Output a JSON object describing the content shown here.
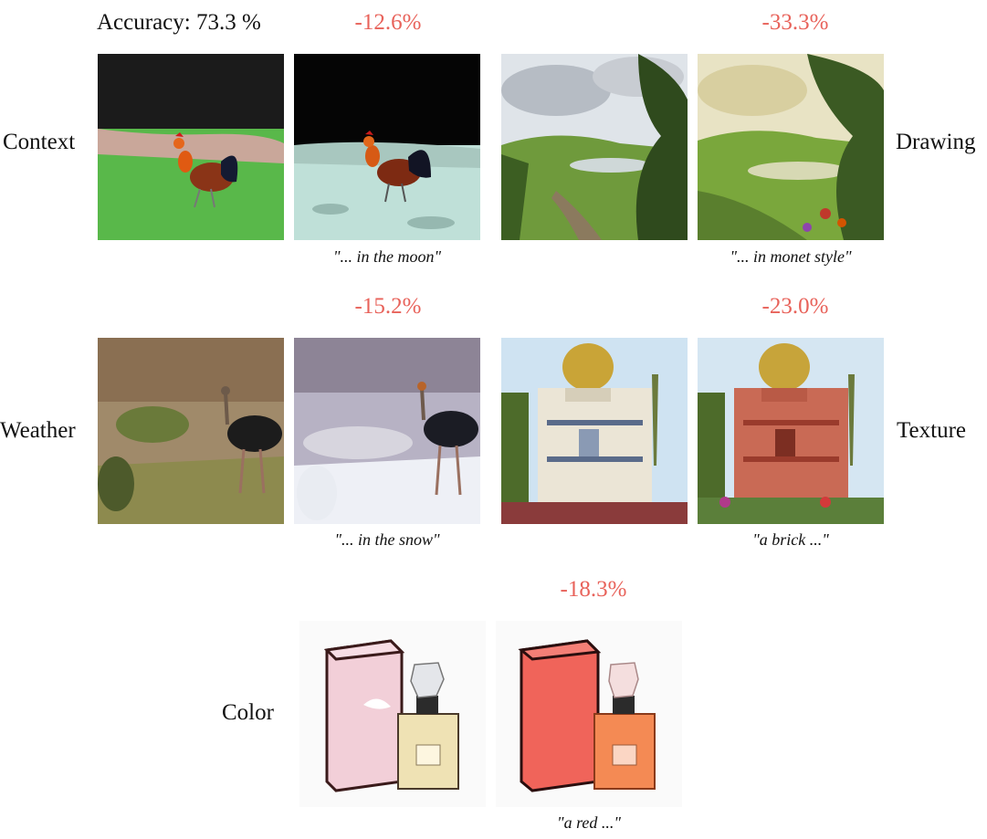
{
  "accuracy_label": "Accuracy: 73.3 %",
  "deltas": {
    "context": "-12.6%",
    "drawing": "-33.3%",
    "weather": "-15.2%",
    "texture": "-23.0%",
    "color": "-18.3%"
  },
  "categories": {
    "context": "Context",
    "drawing": "Drawing",
    "weather": "Weather",
    "texture": "Texture",
    "color": "Color"
  },
  "captions": {
    "context": "\"... in the moon\"",
    "drawing": "\"... in monet style\"",
    "weather": "\"... in the snow\"",
    "texture": "\"a brick ...\"",
    "color": "\"a red ...\""
  },
  "colors": {
    "delta": "#e8625a",
    "text": "#111111"
  }
}
